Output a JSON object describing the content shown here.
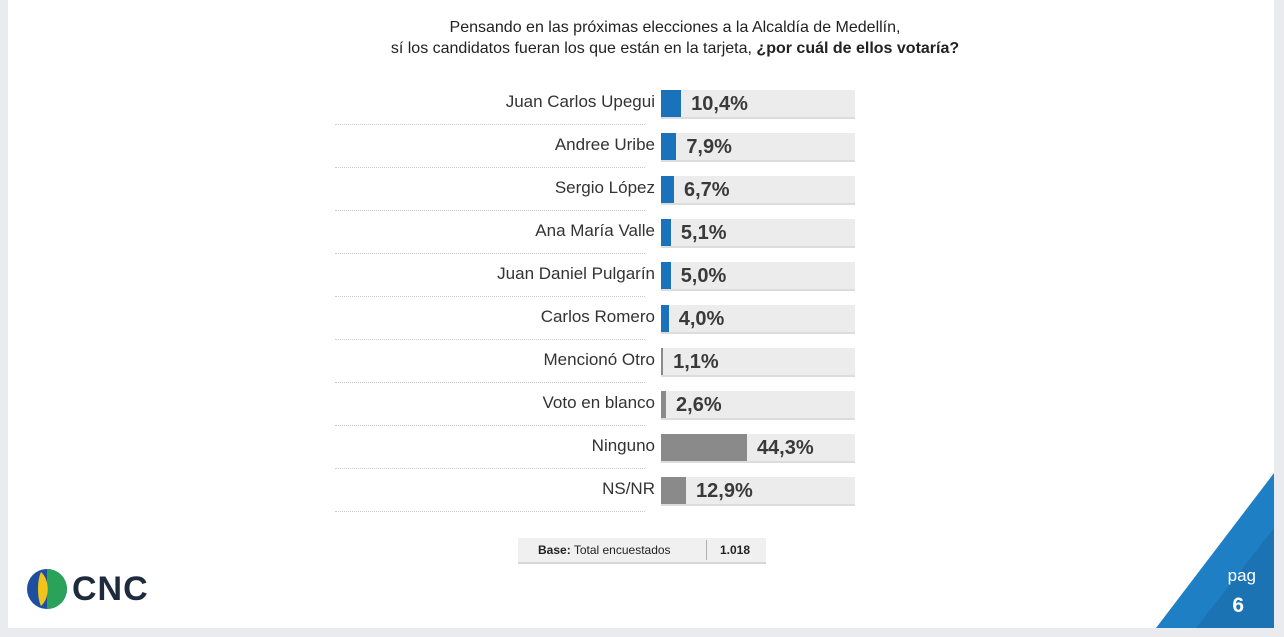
{
  "title": {
    "line1": "Pensando en las próximas elecciones a la Alcaldía de Medellín,",
    "line2": "sí los candidatos fueran los que están en la tarjeta,",
    "question": "¿por cuál de ellos votaría?"
  },
  "colors": {
    "candidate": "#1a72bb",
    "other": "#8a8a8a",
    "corner": "#1e7fc4"
  },
  "chart_data": {
    "type": "bar",
    "orientation": "horizontal",
    "categories": [
      "Juan Carlos Upegui",
      "Andree Uribe",
      "Sergio López",
      "Ana María Valle",
      "Juan Daniel Pulgarín",
      "Carlos Romero",
      "Mencionó Otro",
      "Voto en blanco",
      "Ninguno",
      "NS/NR"
    ],
    "values": [
      10.4,
      7.9,
      6.7,
      5.1,
      5.0,
      4.0,
      1.1,
      2.6,
      44.3,
      12.9
    ],
    "labels": [
      "10,4%",
      "7,9%",
      "6,7%",
      "5,1%",
      "5,0%",
      "4,0%",
      "1,1%",
      "2,6%",
      "44,3%",
      "12,9%"
    ],
    "bar_groups": [
      "candidate",
      "candidate",
      "candidate",
      "candidate",
      "candidate",
      "candidate",
      "other",
      "other",
      "other",
      "other"
    ],
    "xlim": [
      0,
      100
    ],
    "grid": false,
    "unit": "%"
  },
  "base": {
    "label": "Base:",
    "text": "Total encuestados",
    "value": "1.018"
  },
  "logo": {
    "brand": "CNC"
  },
  "page": {
    "word": "pag",
    "number": "6"
  }
}
